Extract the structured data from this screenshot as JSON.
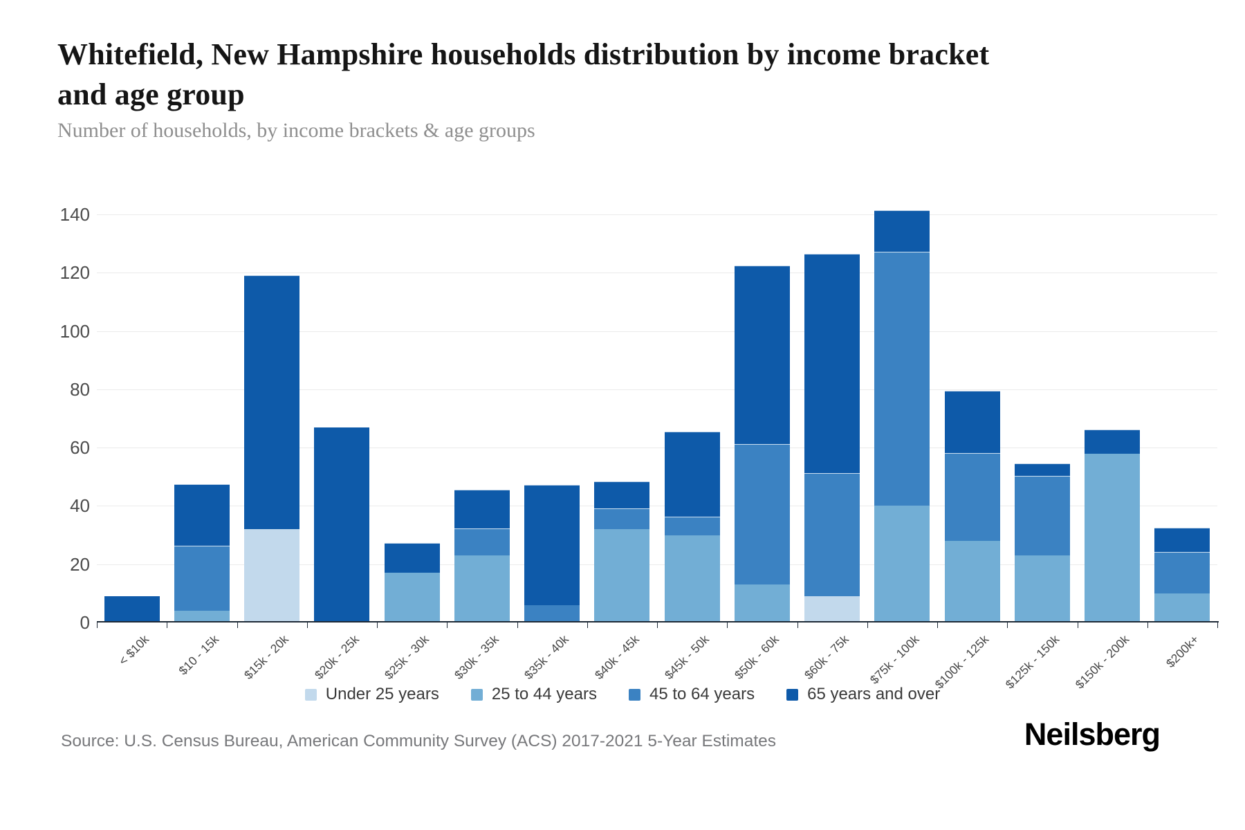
{
  "header": {
    "title": "Whitefield, New Hampshire households distribution by income bracket and age group",
    "subtitle": "Number of households, by income brackets & age groups"
  },
  "chart_data": {
    "type": "bar",
    "stacked": true,
    "title": "Whitefield, New Hampshire households distribution by income bracket and age group",
    "subtitle": "Number of households, by income brackets & age groups",
    "xlabel": "",
    "ylabel": "",
    "ylim": [
      0,
      140
    ],
    "yticks": [
      0,
      20,
      40,
      60,
      80,
      100,
      120,
      140
    ],
    "grid": true,
    "legend_position": "bottom",
    "categories": [
      "< $10k",
      "$10 - 15k",
      "$15k - 20k",
      "$20k - 25k",
      "$25k - 30k",
      "$30k - 35k",
      "$35k - 40k",
      "$40k - 45k",
      "$45k - 50k",
      "$50k - 60k",
      "$60k - 75k",
      "$75k - 100k",
      "$100k - 125k",
      "$125k - 150k",
      "$150k - 200k",
      "$200k+"
    ],
    "series": [
      {
        "name": "Under 25 years",
        "color": "#c2d9ec",
        "values": [
          0,
          0,
          32,
          0,
          0,
          0,
          0,
          0,
          0,
          0,
          9,
          0,
          0,
          0,
          0,
          0
        ]
      },
      {
        "name": "25 to 44 years",
        "color": "#72aed5",
        "values": [
          0,
          4,
          0,
          0,
          17,
          23,
          0,
          32,
          30,
          13,
          0,
          40,
          28,
          23,
          58,
          10
        ]
      },
      {
        "name": "45 to 64 years",
        "color": "#3b82c2",
        "values": [
          0,
          22,
          0,
          0,
          0,
          9,
          6,
          7,
          6,
          48,
          42,
          87,
          30,
          27,
          0,
          14
        ]
      },
      {
        "name": "65 years and over",
        "color": "#0e5aa9",
        "values": [
          9,
          21,
          87,
          67,
          10,
          13,
          41,
          9,
          29,
          61,
          75,
          14,
          21,
          4,
          8,
          8
        ]
      }
    ],
    "totals": [
      9,
      47,
      119,
      67,
      27,
      45,
      47,
      48,
      65,
      122,
      126,
      141,
      79,
      54,
      66,
      32
    ]
  },
  "footer": {
    "source": "Source: U.S. Census Bureau, American Community Survey (ACS) 2017-2021 5-Year Estimates",
    "brand": "Neilsberg"
  }
}
